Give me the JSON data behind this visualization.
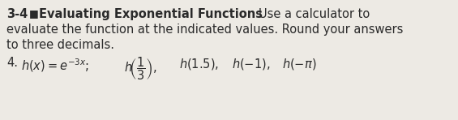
{
  "background_color": "#edeae4",
  "text_color": "#2a2a2a",
  "bold_parts": "3-4 ■ Evaluating Exponential Functions",
  "normal_part": "   Use a calculator to",
  "line2": "evaluate the function at the indicated values. Round your answers",
  "line3": "to three decimals.",
  "problem_num": "4.",
  "math_expr": "$h(x) = e^{-3x}$",
  "math_calls": "$h\\!\\left(\\frac{1}{3}\\right)$, $h(1.5)$, $h(-1)$, $h(-\\pi)$",
  "fs_header": 10.5,
  "fs_body": 10.5
}
